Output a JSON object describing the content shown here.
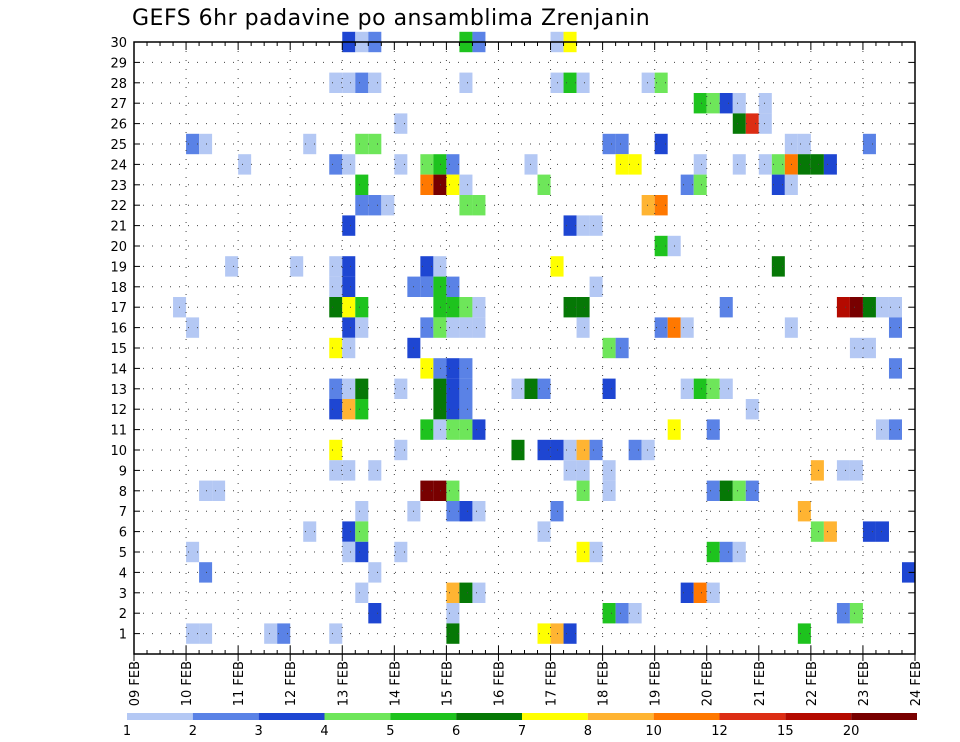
{
  "chart_data": {
    "type": "heatmap",
    "title": "GEFS 6hr padavine po ansamblima Zrenjanin",
    "xlabel": "",
    "ylabel": "",
    "x_ticks": [
      "09 FEB",
      "10 FEB",
      "11 FEB",
      "12 FEB",
      "13 FEB",
      "14 FEB",
      "15 FEB",
      "16 FEB",
      "17 FEB",
      "18 FEB",
      "19 FEB",
      "20 FEB",
      "21 FEB",
      "22 FEB",
      "23 FEB",
      "24 FEB"
    ],
    "y_ticks": [
      "1",
      "2",
      "3",
      "4",
      "5",
      "6",
      "7",
      "8",
      "9",
      "10",
      "11",
      "12",
      "13",
      "14",
      "15",
      "16",
      "17",
      "18",
      "19",
      "20",
      "21",
      "22",
      "23",
      "24",
      "25",
      "26",
      "27",
      "28",
      "29",
      "30"
    ],
    "colorbar": {
      "labels": [
        "1",
        "2",
        "3",
        "4",
        "5",
        "6",
        "7",
        "8",
        "10",
        "12",
        "15",
        "20"
      ],
      "colors": [
        "#b4c8f4",
        "#5a82e6",
        "#1e46d2",
        "#6ee65a",
        "#1ec31e",
        "#067806",
        "#ffff00",
        "#ffb432",
        "#ff7800",
        "#dc2d14",
        "#b40a00",
        "#780000"
      ]
    },
    "grid": true,
    "cells": [
      [
        30,
        "13 FEB",
        3
      ],
      [
        30,
        "13 FEB 06z",
        1
      ],
      [
        30,
        "13 FEB 12z",
        2
      ],
      [
        30,
        "15 FEB 06z",
        5
      ],
      [
        30,
        "15 FEB 12z",
        2
      ],
      [
        30,
        "17 FEB",
        1
      ],
      [
        30,
        "17 FEB 06z",
        7
      ],
      [
        28,
        "12 FEB 18z",
        1
      ],
      [
        28,
        "13 FEB",
        1
      ],
      [
        28,
        "13 FEB 06z",
        2
      ],
      [
        28,
        "13 FEB 12z",
        1
      ],
      [
        28,
        "15 FEB 06z",
        1
      ],
      [
        28,
        "17 FEB",
        1
      ],
      [
        28,
        "17 FEB 06z",
        5
      ],
      [
        28,
        "17 FEB 12z",
        1
      ],
      [
        28,
        "18 FEB 18z",
        1
      ],
      [
        28,
        "19 FEB",
        4
      ],
      [
        27,
        "19 FEB 18z",
        5
      ],
      [
        27,
        "20 FEB",
        4
      ],
      [
        27,
        "20 FEB 06z",
        3
      ],
      [
        27,
        "20 FEB 12z",
        1
      ],
      [
        27,
        "21 FEB",
        1
      ],
      [
        26,
        "14 FEB",
        1
      ],
      [
        26,
        "20 FEB 12z",
        6
      ],
      [
        26,
        "20 FEB 18z",
        10
      ],
      [
        26,
        "21 FEB",
        1
      ],
      [
        25,
        "10 FEB",
        2
      ],
      [
        25,
        "10 FEB 06z",
        1
      ],
      [
        25,
        "12 FEB 06z",
        1
      ],
      [
        25,
        "13 FEB 06z",
        4
      ],
      [
        25,
        "13 FEB 12z",
        4
      ],
      [
        25,
        "18 FEB",
        2
      ],
      [
        25,
        "18 FEB 06z",
        2
      ],
      [
        25,
        "19 FEB",
        3
      ],
      [
        25,
        "21 FEB 12z",
        1
      ],
      [
        25,
        "21 FEB 18z",
        1
      ],
      [
        25,
        "23 FEB",
        2
      ],
      [
        24,
        "11 FEB",
        1
      ],
      [
        24,
        "12 FEB 18z",
        2
      ],
      [
        24,
        "13 FEB",
        1
      ],
      [
        24,
        "14 FEB",
        1
      ],
      [
        24,
        "14 FEB 12z",
        4
      ],
      [
        24,
        "14 FEB 18z",
        5
      ],
      [
        24,
        "15 FEB",
        2
      ],
      [
        24,
        "16 FEB 12z",
        1
      ],
      [
        24,
        "18 FEB 06z",
        7
      ],
      [
        24,
        "18 FEB 12z",
        7
      ],
      [
        24,
        "19 FEB 18z",
        1
      ],
      [
        24,
        "20 FEB 12z",
        1
      ],
      [
        24,
        "21 FEB",
        1
      ],
      [
        24,
        "21 FEB 06z",
        4
      ],
      [
        24,
        "21 FEB 12z",
        9
      ],
      [
        24,
        "21 FEB 18z",
        6
      ],
      [
        24,
        "22 FEB",
        6
      ],
      [
        24,
        "22 FEB 06z",
        3
      ],
      [
        23,
        "13 FEB 06z",
        5
      ],
      [
        23,
        "14 FEB 12z",
        9
      ],
      [
        23,
        "14 FEB 18z",
        12
      ],
      [
        23,
        "15 FEB",
        7
      ],
      [
        23,
        "15 FEB 06z",
        1
      ],
      [
        23,
        "16 FEB 18z",
        4
      ],
      [
        23,
        "19 FEB 12z",
        2
      ],
      [
        23,
        "19 FEB 18z",
        4
      ],
      [
        23,
        "21 FEB 06z",
        3
      ],
      [
        23,
        "21 FEB 12z",
        1
      ],
      [
        22,
        "13 FEB 06z",
        2
      ],
      [
        22,
        "13 FEB 12z",
        2
      ],
      [
        22,
        "13 FEB 18z",
        1
      ],
      [
        22,
        "15 FEB 06z",
        4
      ],
      [
        22,
        "15 FEB 12z",
        4
      ],
      [
        22,
        "18 FEB 18z",
        8
      ],
      [
        22,
        "19 FEB",
        9
      ],
      [
        21,
        "13 FEB",
        3
      ],
      [
        21,
        "17 FEB 06z",
        3
      ],
      [
        21,
        "17 FEB 12z",
        1
      ],
      [
        21,
        "17 FEB 18z",
        1
      ],
      [
        20,
        "19 FEB",
        5
      ],
      [
        20,
        "19 FEB 06z",
        1
      ],
      [
        19,
        "10 FEB 18z",
        1
      ],
      [
        19,
        "12 FEB",
        1
      ],
      [
        19,
        "12 FEB 18z",
        1
      ],
      [
        19,
        "13 FEB",
        3
      ],
      [
        19,
        "14 FEB 12z",
        3
      ],
      [
        19,
        "14 FEB 18z",
        1
      ],
      [
        19,
        "17 FEB",
        7
      ],
      [
        19,
        "21 FEB 06z",
        6
      ],
      [
        18,
        "12 FEB 18z",
        1
      ],
      [
        18,
        "13 FEB",
        3
      ],
      [
        18,
        "14 FEB 06z",
        2
      ],
      [
        18,
        "14 FEB 12z",
        2
      ],
      [
        18,
        "14 FEB 18z",
        5
      ],
      [
        18,
        "15 FEB",
        2
      ],
      [
        18,
        "17 FEB 18z",
        1
      ],
      [
        17,
        "09 FEB 18z",
        1
      ],
      [
        17,
        "12 FEB 18z",
        6
      ],
      [
        17,
        "13 FEB",
        7
      ],
      [
        17,
        "13 FEB 06z",
        5
      ],
      [
        17,
        "14 FEB 18z",
        5
      ],
      [
        17,
        "15 FEB",
        5
      ],
      [
        17,
        "15 FEB 06z",
        4
      ],
      [
        17,
        "15 FEB 12z",
        1
      ],
      [
        17,
        "17 FEB 06z",
        6
      ],
      [
        17,
        "17 FEB 12z",
        6
      ],
      [
        17,
        "20 FEB 06z",
        2
      ],
      [
        17,
        "22 FEB 12z",
        11
      ],
      [
        17,
        "22 FEB 18z",
        12
      ],
      [
        17,
        "23 FEB",
        6
      ],
      [
        17,
        "23 FEB 06z",
        1
      ],
      [
        17,
        "23 FEB 12z",
        1
      ],
      [
        16,
        "10 FEB",
        1
      ],
      [
        16,
        "13 FEB",
        3
      ],
      [
        16,
        "13 FEB 06z",
        1
      ],
      [
        16,
        "14 FEB 12z",
        2
      ],
      [
        16,
        "14 FEB 18z",
        4
      ],
      [
        16,
        "15 FEB",
        1
      ],
      [
        16,
        "15 FEB 06z",
        1
      ],
      [
        16,
        "15 FEB 12z",
        1
      ],
      [
        16,
        "17 FEB 12z",
        1
      ],
      [
        16,
        "19 FEB",
        2
      ],
      [
        16,
        "19 FEB 06z",
        9
      ],
      [
        16,
        "19 FEB 12z",
        1
      ],
      [
        16,
        "21 FEB 12z",
        1
      ],
      [
        16,
        "23 FEB 12z",
        2
      ],
      [
        15,
        "12 FEB 18z",
        7
      ],
      [
        15,
        "13 FEB",
        1
      ],
      [
        15,
        "14 FEB 06z",
        3
      ],
      [
        15,
        "18 FEB",
        4
      ],
      [
        15,
        "18 FEB 06z",
        2
      ],
      [
        15,
        "22 FEB 18z",
        1
      ],
      [
        15,
        "23 FEB",
        1
      ],
      [
        14,
        "14 FEB 12z",
        7
      ],
      [
        14,
        "14 FEB 18z",
        2
      ],
      [
        14,
        "15 FEB",
        3
      ],
      [
        14,
        "15 FEB 06z",
        2
      ],
      [
        14,
        "23 FEB 12z",
        2
      ],
      [
        13,
        "12 FEB 18z",
        2
      ],
      [
        13,
        "13 FEB",
        1
      ],
      [
        13,
        "13 FEB 06z",
        6
      ],
      [
        13,
        "14 FEB",
        1
      ],
      [
        13,
        "14 FEB 18z",
        6
      ],
      [
        13,
        "15 FEB",
        3
      ],
      [
        13,
        "15 FEB 06z",
        2
      ],
      [
        13,
        "16 FEB 06z",
        1
      ],
      [
        13,
        "16 FEB 12z",
        6
      ],
      [
        13,
        "16 FEB 18z",
        2
      ],
      [
        13,
        "18 FEB",
        3
      ],
      [
        13,
        "19 FEB 12z",
        1
      ],
      [
        13,
        "19 FEB 18z",
        5
      ],
      [
        13,
        "20 FEB",
        4
      ],
      [
        13,
        "20 FEB 06z",
        1
      ],
      [
        12,
        "12 FEB 18z",
        3
      ],
      [
        12,
        "13 FEB",
        8
      ],
      [
        12,
        "13 FEB 06z",
        5
      ],
      [
        12,
        "14 FEB 18z",
        6
      ],
      [
        12,
        "15 FEB",
        3
      ],
      [
        12,
        "15 FEB 06z",
        2
      ],
      [
        12,
        "20 FEB 18z",
        1
      ],
      [
        11,
        "14 FEB 12z",
        5
      ],
      [
        11,
        "14 FEB 18z",
        1
      ],
      [
        11,
        "15 FEB",
        4
      ],
      [
        11,
        "15 FEB 06z",
        4
      ],
      [
        11,
        "15 FEB 12z",
        3
      ],
      [
        11,
        "19 FEB 06z",
        7
      ],
      [
        11,
        "20 FEB",
        2
      ],
      [
        11,
        "23 FEB 06z",
        1
      ],
      [
        11,
        "23 FEB 12z",
        2
      ],
      [
        10,
        "12 FEB 18z",
        7
      ],
      [
        10,
        "14 FEB",
        1
      ],
      [
        10,
        "16 FEB 06z",
        6
      ],
      [
        10,
        "16 FEB 18z",
        3
      ],
      [
        10,
        "17 FEB",
        3
      ],
      [
        10,
        "17 FEB 06z",
        1
      ],
      [
        10,
        "17 FEB 12z",
        8
      ],
      [
        10,
        "17 FEB 18z",
        2
      ],
      [
        10,
        "18 FEB 12z",
        2
      ],
      [
        10,
        "18 FEB 18z",
        1
      ],
      [
        9,
        "12 FEB 18z",
        1
      ],
      [
        9,
        "13 FEB",
        1
      ],
      [
        9,
        "13 FEB 12z",
        1
      ],
      [
        9,
        "17 FEB 06z",
        1
      ],
      [
        9,
        "17 FEB 12z",
        1
      ],
      [
        9,
        "18 FEB",
        1
      ],
      [
        9,
        "22 FEB",
        8
      ],
      [
        9,
        "22 FEB 12z",
        1
      ],
      [
        9,
        "22 FEB 18z",
        1
      ],
      [
        8,
        "10 FEB 06z",
        1
      ],
      [
        8,
        "10 FEB 12z",
        1
      ],
      [
        8,
        "14 FEB 12z",
        12
      ],
      [
        8,
        "14 FEB 18z",
        12
      ],
      [
        8,
        "15 FEB",
        4
      ],
      [
        8,
        "17 FEB 12z",
        4
      ],
      [
        8,
        "18 FEB",
        1
      ],
      [
        8,
        "20 FEB",
        2
      ],
      [
        8,
        "20 FEB 06z",
        6
      ],
      [
        8,
        "20 FEB 12z",
        4
      ],
      [
        8,
        "20 FEB 18z",
        2
      ],
      [
        7,
        "13 FEB 06z",
        1
      ],
      [
        7,
        "14 FEB 06z",
        1
      ],
      [
        7,
        "15 FEB",
        2
      ],
      [
        7,
        "15 FEB 06z",
        3
      ],
      [
        7,
        "15 FEB 12z",
        1
      ],
      [
        7,
        "17 FEB",
        2
      ],
      [
        7,
        "21 FEB 18z",
        8
      ],
      [
        6,
        "12 FEB 06z",
        1
      ],
      [
        6,
        "13 FEB",
        3
      ],
      [
        6,
        "13 FEB 06z",
        4
      ],
      [
        6,
        "16 FEB 18z",
        1
      ],
      [
        6,
        "22 FEB",
        4
      ],
      [
        6,
        "22 FEB 06z",
        8
      ],
      [
        6,
        "23 FEB",
        3
      ],
      [
        6,
        "23 FEB 06z",
        3
      ],
      [
        5,
        "10 FEB",
        1
      ],
      [
        5,
        "13 FEB",
        1
      ],
      [
        5,
        "13 FEB 06z",
        3
      ],
      [
        5,
        "14 FEB",
        1
      ],
      [
        5,
        "17 FEB 12z",
        7
      ],
      [
        5,
        "17 FEB 18z",
        1
      ],
      [
        5,
        "20 FEB",
        5
      ],
      [
        5,
        "20 FEB 06z",
        2
      ],
      [
        5,
        "20 FEB 12z",
        1
      ],
      [
        4,
        "10 FEB 06z",
        2
      ],
      [
        4,
        "13 FEB 12z",
        1
      ],
      [
        4,
        "23 FEB 18z",
        3
      ],
      [
        3,
        "13 FEB 06z",
        1
      ],
      [
        3,
        "15 FEB",
        8
      ],
      [
        3,
        "15 FEB 06z",
        6
      ],
      [
        3,
        "15 FEB 12z",
        1
      ],
      [
        3,
        "19 FEB 12z",
        3
      ],
      [
        3,
        "19 FEB 18z",
        9
      ],
      [
        3,
        "20 FEB",
        1
      ],
      [
        2,
        "13 FEB 12z",
        3
      ],
      [
        2,
        "15 FEB",
        1
      ],
      [
        2,
        "18 FEB",
        5
      ],
      [
        2,
        "18 FEB 06z",
        2
      ],
      [
        2,
        "18 FEB 12z",
        1
      ],
      [
        2,
        "22 FEB 12z",
        2
      ],
      [
        2,
        "22 FEB 18z",
        4
      ],
      [
        1,
        "10 FEB",
        1
      ],
      [
        1,
        "10 FEB 06z",
        1
      ],
      [
        1,
        "11 FEB 12z",
        1
      ],
      [
        1,
        "11 FEB 18z",
        2
      ],
      [
        1,
        "12 FEB 18z",
        1
      ],
      [
        1,
        "15 FEB",
        6
      ],
      [
        1,
        "16 FEB 18z",
        7
      ],
      [
        1,
        "17 FEB",
        8
      ],
      [
        1,
        "17 FEB 06z",
        3
      ],
      [
        1,
        "21 FEB 18z",
        5
      ]
    ]
  }
}
